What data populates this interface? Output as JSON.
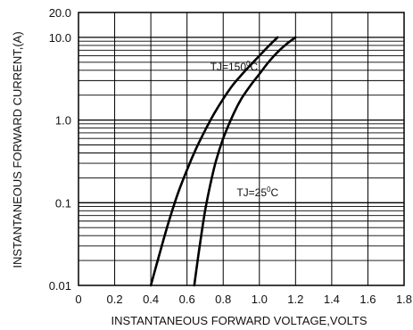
{
  "chart_data": {
    "type": "line",
    "xlabel": "INSTANTANEOUS FORWARD VOLTAGE,VOLTS",
    "ylabel": "INSTANTANEOUS FORWARD CURRENT,(A)",
    "xlim": [
      0,
      1.8
    ],
    "ylim": [
      0.01,
      20
    ],
    "y_scale": "log",
    "grid": true,
    "x_ticks": [
      "0",
      "0.2",
      "0.4",
      "0.6",
      "0.8",
      "1.0",
      "1.2",
      "1.4",
      "1.6",
      "1.8"
    ],
    "y_ticks": [
      {
        "value": 0.01,
        "label": "0.01"
      },
      {
        "value": 0.1,
        "label": "0.1"
      },
      {
        "value": 1,
        "label": "1.0"
      },
      {
        "value": 10,
        "label": "10.0"
      },
      {
        "value": 20,
        "label": "20.0"
      }
    ],
    "series": [
      {
        "name": "TJ=150",
        "name_sup": "0",
        "name_suffix": "C",
        "label_at": {
          "x": 0.86,
          "y": 4.0
        },
        "points": [
          [
            0.4,
            0.01
          ],
          [
            0.45,
            0.025
          ],
          [
            0.5,
            0.06
          ],
          [
            0.55,
            0.13
          ],
          [
            0.6,
            0.25
          ],
          [
            0.65,
            0.45
          ],
          [
            0.7,
            0.75
          ],
          [
            0.75,
            1.2
          ],
          [
            0.8,
            1.8
          ],
          [
            0.85,
            2.6
          ],
          [
            0.9,
            3.5
          ],
          [
            0.95,
            4.6
          ],
          [
            1.0,
            6.0
          ],
          [
            1.05,
            7.8
          ],
          [
            1.1,
            10.0
          ]
        ]
      },
      {
        "name": "TJ=25",
        "name_sup": "0",
        "name_suffix": "C",
        "label_at": {
          "x": 0.99,
          "y": 0.12
        },
        "points": [
          [
            0.64,
            0.01
          ],
          [
            0.67,
            0.03
          ],
          [
            0.7,
            0.08
          ],
          [
            0.73,
            0.17
          ],
          [
            0.76,
            0.32
          ],
          [
            0.8,
            0.6
          ],
          [
            0.85,
            1.1
          ],
          [
            0.9,
            1.8
          ],
          [
            0.95,
            2.6
          ],
          [
            1.0,
            3.6
          ],
          [
            1.05,
            5.0
          ],
          [
            1.1,
            6.6
          ],
          [
            1.15,
            8.3
          ],
          [
            1.2,
            10.0
          ]
        ]
      }
    ]
  }
}
